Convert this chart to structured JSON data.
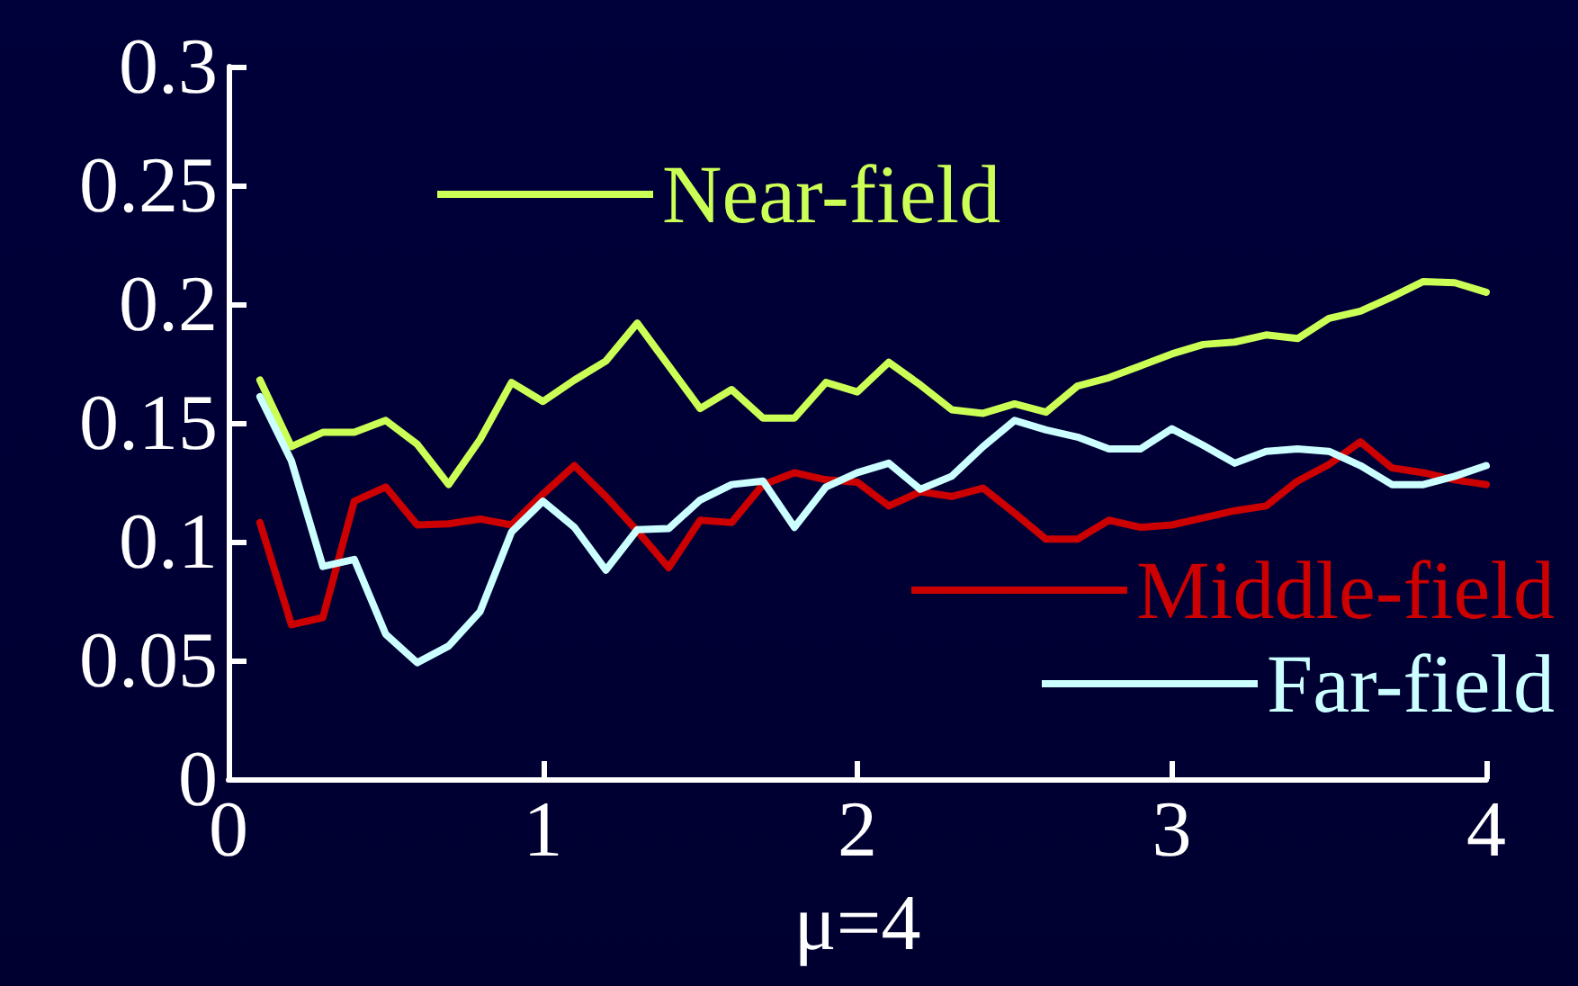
{
  "chart_data": {
    "type": "line",
    "xlabel": "μ=4",
    "x": [
      0.1,
      0.2,
      0.3,
      0.4,
      0.5,
      0.6,
      0.7,
      0.8,
      0.9,
      1.0,
      1.1,
      1.2,
      1.3,
      1.4,
      1.5,
      1.6,
      1.7,
      1.8,
      1.9,
      2.0,
      2.1,
      2.2,
      2.3,
      2.4,
      2.5,
      2.6,
      2.7,
      2.8,
      2.9,
      3.0,
      3.1,
      3.2,
      3.3,
      3.4,
      3.5,
      3.6,
      3.7,
      3.8,
      3.9,
      4.0
    ],
    "series": [
      {
        "name": "Near-field",
        "color": "#ccff55",
        "values": [
          0.168,
          0.14,
          0.146,
          0.146,
          0.151,
          0.141,
          0.124,
          0.143,
          0.167,
          0.159,
          0.168,
          0.176,
          0.192,
          0.174,
          0.156,
          0.164,
          0.152,
          0.152,
          0.167,
          0.163,
          0.1755,
          0.166,
          0.1555,
          0.154,
          0.158,
          0.1545,
          0.1655,
          0.169,
          0.174,
          0.179,
          0.183,
          0.184,
          0.187,
          0.1855,
          0.194,
          0.197,
          0.203,
          0.2095,
          0.209,
          0.205
        ]
      },
      {
        "name": "Middle-field",
        "color": "#cc0000",
        "values": [
          0.108,
          0.065,
          0.068,
          0.117,
          0.123,
          0.107,
          0.1075,
          0.1095,
          0.107,
          0.12,
          0.132,
          0.119,
          0.1045,
          0.089,
          0.109,
          0.108,
          0.124,
          0.129,
          0.126,
          0.125,
          0.115,
          0.121,
          0.119,
          0.1225,
          0.112,
          0.101,
          0.101,
          0.109,
          0.106,
          0.107,
          0.11,
          0.113,
          0.115,
          0.1255,
          0.1325,
          0.142,
          0.131,
          0.129,
          0.126,
          0.124
        ]
      },
      {
        "name": "Far-field",
        "color": "#ccffff",
        "values": [
          0.161,
          0.134,
          0.0895,
          0.0925,
          0.061,
          0.049,
          0.056,
          0.0705,
          0.104,
          0.117,
          0.106,
          0.088,
          0.105,
          0.1055,
          0.1175,
          0.124,
          0.1255,
          0.106,
          0.123,
          0.129,
          0.133,
          0.122,
          0.1275,
          0.14,
          0.151,
          0.147,
          0.144,
          0.139,
          0.139,
          0.1475,
          0.1405,
          0.133,
          0.138,
          0.139,
          0.138,
          0.132,
          0.124,
          0.124,
          0.1275,
          0.132
        ]
      }
    ],
    "xlim": [
      0,
      4
    ],
    "xticks": [
      0,
      1,
      2,
      3,
      4
    ],
    "ylim": [
      0,
      0.3
    ],
    "yticks": [
      0,
      0.05,
      0.1,
      0.15,
      0.2,
      0.25,
      0.3
    ],
    "grid": false,
    "legend": "right",
    "marker": "none",
    "line_style": "solid"
  }
}
